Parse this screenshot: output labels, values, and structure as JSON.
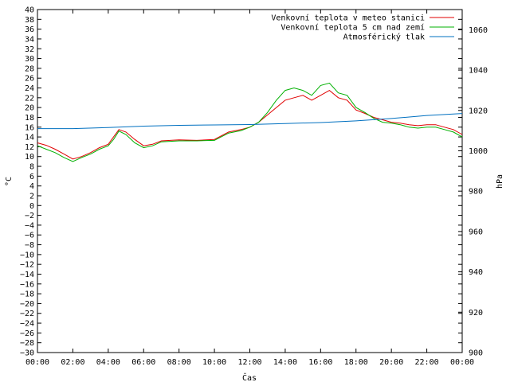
{
  "chart_data": {
    "type": "line",
    "xlabel": "Čas",
    "ylabel_left": "°C",
    "ylabel_right": "hPa",
    "x_ticks": [
      "00:00",
      "02:00",
      "04:00",
      "06:00",
      "08:00",
      "10:00",
      "12:00",
      "14:00",
      "16:00",
      "18:00",
      "20:00",
      "22:00",
      "00:00"
    ],
    "x_range_hours": [
      0,
      24
    ],
    "ylim_left": [
      -30,
      40
    ],
    "ylim_right": [
      900,
      1070
    ],
    "y_ticks_left": [
      40,
      38,
      36,
      34,
      32,
      30,
      28,
      26,
      24,
      22,
      20,
      18,
      16,
      14,
      12,
      10,
      8,
      6,
      4,
      2,
      0,
      -2,
      -4,
      -6,
      -8,
      -10,
      -12,
      -14,
      -16,
      -18,
      -20,
      -22,
      -24,
      -26,
      -28,
      -30
    ],
    "y_ticks_left_labels": [
      "40",
      "38",
      "36",
      "34",
      "32",
      "30",
      "28",
      "26",
      "24",
      "22",
      "20",
      "18",
      "16",
      "14",
      "12",
      "10",
      "8",
      "6",
      "4",
      "2",
      "0",
      "−2",
      "−4",
      "−6",
      "−8",
      "−10",
      "−12",
      "−14",
      "−16",
      "−18",
      "−20",
      "−22",
      "−24",
      "−26",
      "−28",
      "−30"
    ],
    "y_ticks_right": [
      1060,
      1040,
      1020,
      1000,
      980,
      960,
      940,
      920,
      900
    ],
    "legend_position": "top-right",
    "grid": false,
    "series": [
      {
        "name": "Venkovní teplota v meteo stanici",
        "color": "#e00000",
        "axis": "left",
        "x": [
          0,
          0.5,
          1,
          1.5,
          2,
          2.5,
          3,
          3.5,
          4,
          4.3,
          4.6,
          5,
          5.5,
          6,
          6.5,
          7,
          8,
          9,
          10,
          10.8,
          11.5,
          12,
          12.5,
          13,
          13.5,
          14,
          14.5,
          15,
          15.5,
          16,
          16.5,
          17,
          17.5,
          18,
          18.5,
          19,
          19.5,
          20,
          20.5,
          21,
          21.5,
          22,
          22.5,
          23,
          23.5,
          24
        ],
        "values": [
          12.8,
          12.3,
          11.5,
          10.5,
          9.5,
          10,
          10.8,
          11.8,
          12.5,
          14,
          15.5,
          15,
          13.5,
          12.2,
          12.5,
          13.2,
          13.4,
          13.3,
          13.5,
          15,
          15.5,
          16,
          17,
          18.5,
          20,
          21.5,
          22,
          22.5,
          21.5,
          22.5,
          23.5,
          22,
          21.5,
          19.5,
          18.8,
          18,
          17.5,
          17,
          16.8,
          16.5,
          16.3,
          16.5,
          16.5,
          16,
          15.5,
          14.5
        ]
      },
      {
        "name": "Venkovní teplota 5 cm nad zemí",
        "color": "#00b000",
        "axis": "left",
        "x": [
          0,
          0.5,
          1,
          1.5,
          2,
          2.5,
          3,
          3.5,
          4,
          4.3,
          4.6,
          5,
          5.5,
          6,
          6.5,
          7,
          8,
          9,
          10,
          10.8,
          11.5,
          12,
          12.5,
          13,
          13.5,
          14,
          14.5,
          15,
          15.5,
          16,
          16.5,
          17,
          17.5,
          18,
          18.5,
          19,
          19.5,
          20,
          20.5,
          21,
          21.5,
          22,
          22.5,
          23,
          23.5,
          24
        ],
        "values": [
          12.2,
          11.5,
          10.8,
          9.8,
          9,
          9.8,
          10.5,
          11.5,
          12.2,
          13.5,
          15.2,
          14.5,
          12.8,
          11.8,
          12.2,
          13,
          13.2,
          13.2,
          13.3,
          14.8,
          15.3,
          16,
          17,
          19,
          21.5,
          23.5,
          24,
          23.5,
          22.5,
          24.5,
          25,
          23,
          22.5,
          20,
          19,
          17.8,
          17,
          16.8,
          16.5,
          16,
          15.8,
          16,
          16,
          15.5,
          15,
          14
        ]
      },
      {
        "name": "Atmosférický tlak",
        "color": "#0070c0",
        "axis": "right",
        "x": [
          0,
          2,
          4,
          6,
          8,
          10,
          12,
          14,
          16,
          18,
          20,
          22,
          24
        ],
        "values": [
          1011,
          1011,
          1011.5,
          1012.2,
          1012.6,
          1012.8,
          1013,
          1013.5,
          1014,
          1014.8,
          1016,
          1017.5,
          1018.5
        ]
      }
    ]
  }
}
